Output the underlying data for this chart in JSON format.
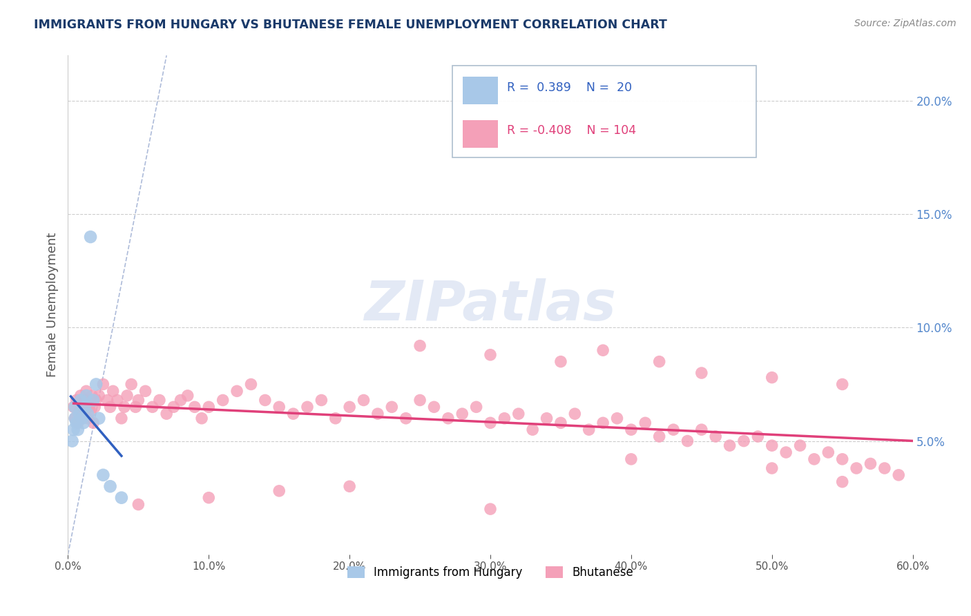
{
  "title": "IMMIGRANTS FROM HUNGARY VS BHUTANESE FEMALE UNEMPLOYMENT CORRELATION CHART",
  "source": "Source: ZipAtlas.com",
  "ylabel": "Female Unemployment",
  "xlim": [
    0.0,
    0.6
  ],
  "ylim": [
    0.0,
    0.22
  ],
  "yticks": [
    0.05,
    0.1,
    0.15,
    0.2
  ],
  "ytick_labels": [
    "5.0%",
    "10.0%",
    "15.0%",
    "20.0%"
  ],
  "xticks": [
    0.0,
    0.1,
    0.2,
    0.3,
    0.4,
    0.5,
    0.6
  ],
  "xtick_labels": [
    "0.0%",
    "10.0%",
    "20.0%",
    "30.0%",
    "40.0%",
    "50.0%",
    "60.0%"
  ],
  "hungary_color": "#a8c8e8",
  "bhutanese_color": "#f4a0b8",
  "hungary_line_color": "#3060c0",
  "bhutanese_line_color": "#e0407a",
  "R_hungary": 0.389,
  "N_hungary": 20,
  "R_bhutanese": -0.408,
  "N_bhutanese": 104,
  "watermark_text": "ZIPatlas",
  "background_color": "#ffffff",
  "grid_color": "#cccccc",
  "title_color": "#1a3a6a",
  "axis_label_color": "#555555",
  "right_yaxis_color": "#5588cc",
  "source_color": "#888888",
  "diag_line_color": "#99aad0",
  "hungary_points_x": [
    0.003,
    0.004,
    0.005,
    0.005,
    0.006,
    0.007,
    0.008,
    0.009,
    0.01,
    0.011,
    0.012,
    0.013,
    0.014,
    0.016,
    0.018,
    0.02,
    0.022,
    0.025,
    0.03,
    0.038
  ],
  "hungary_points_y": [
    0.05,
    0.055,
    0.06,
    0.065,
    0.058,
    0.055,
    0.062,
    0.068,
    0.06,
    0.058,
    0.065,
    0.07,
    0.062,
    0.14,
    0.068,
    0.075,
    0.06,
    0.035,
    0.03,
    0.025
  ],
  "bhutanese_points_x": [
    0.004,
    0.005,
    0.006,
    0.007,
    0.008,
    0.009,
    0.01,
    0.011,
    0.012,
    0.013,
    0.014,
    0.015,
    0.016,
    0.017,
    0.018,
    0.019,
    0.02,
    0.022,
    0.025,
    0.028,
    0.03,
    0.032,
    0.035,
    0.038,
    0.04,
    0.042,
    0.045,
    0.048,
    0.05,
    0.055,
    0.06,
    0.065,
    0.07,
    0.075,
    0.08,
    0.085,
    0.09,
    0.095,
    0.1,
    0.11,
    0.12,
    0.13,
    0.14,
    0.15,
    0.16,
    0.17,
    0.18,
    0.19,
    0.2,
    0.21,
    0.22,
    0.23,
    0.24,
    0.25,
    0.26,
    0.27,
    0.28,
    0.29,
    0.3,
    0.31,
    0.32,
    0.33,
    0.34,
    0.35,
    0.36,
    0.37,
    0.38,
    0.39,
    0.4,
    0.41,
    0.42,
    0.43,
    0.44,
    0.45,
    0.46,
    0.47,
    0.48,
    0.49,
    0.5,
    0.51,
    0.52,
    0.53,
    0.54,
    0.55,
    0.56,
    0.57,
    0.58,
    0.59,
    0.38,
    0.42,
    0.25,
    0.3,
    0.35,
    0.45,
    0.5,
    0.55,
    0.2,
    0.15,
    0.1,
    0.05,
    0.4,
    0.5,
    0.55,
    0.3
  ],
  "bhutanese_points_y": [
    0.065,
    0.06,
    0.068,
    0.058,
    0.063,
    0.07,
    0.062,
    0.065,
    0.068,
    0.072,
    0.06,
    0.065,
    0.063,
    0.07,
    0.058,
    0.065,
    0.068,
    0.07,
    0.075,
    0.068,
    0.065,
    0.072,
    0.068,
    0.06,
    0.065,
    0.07,
    0.075,
    0.065,
    0.068,
    0.072,
    0.065,
    0.068,
    0.062,
    0.065,
    0.068,
    0.07,
    0.065,
    0.06,
    0.065,
    0.068,
    0.072,
    0.075,
    0.068,
    0.065,
    0.062,
    0.065,
    0.068,
    0.06,
    0.065,
    0.068,
    0.062,
    0.065,
    0.06,
    0.068,
    0.065,
    0.06,
    0.062,
    0.065,
    0.058,
    0.06,
    0.062,
    0.055,
    0.06,
    0.058,
    0.062,
    0.055,
    0.058,
    0.06,
    0.055,
    0.058,
    0.052,
    0.055,
    0.05,
    0.055,
    0.052,
    0.048,
    0.05,
    0.052,
    0.048,
    0.045,
    0.048,
    0.042,
    0.045,
    0.042,
    0.038,
    0.04,
    0.038,
    0.035,
    0.09,
    0.085,
    0.092,
    0.088,
    0.085,
    0.08,
    0.078,
    0.075,
    0.03,
    0.028,
    0.025,
    0.022,
    0.042,
    0.038,
    0.032,
    0.02
  ]
}
